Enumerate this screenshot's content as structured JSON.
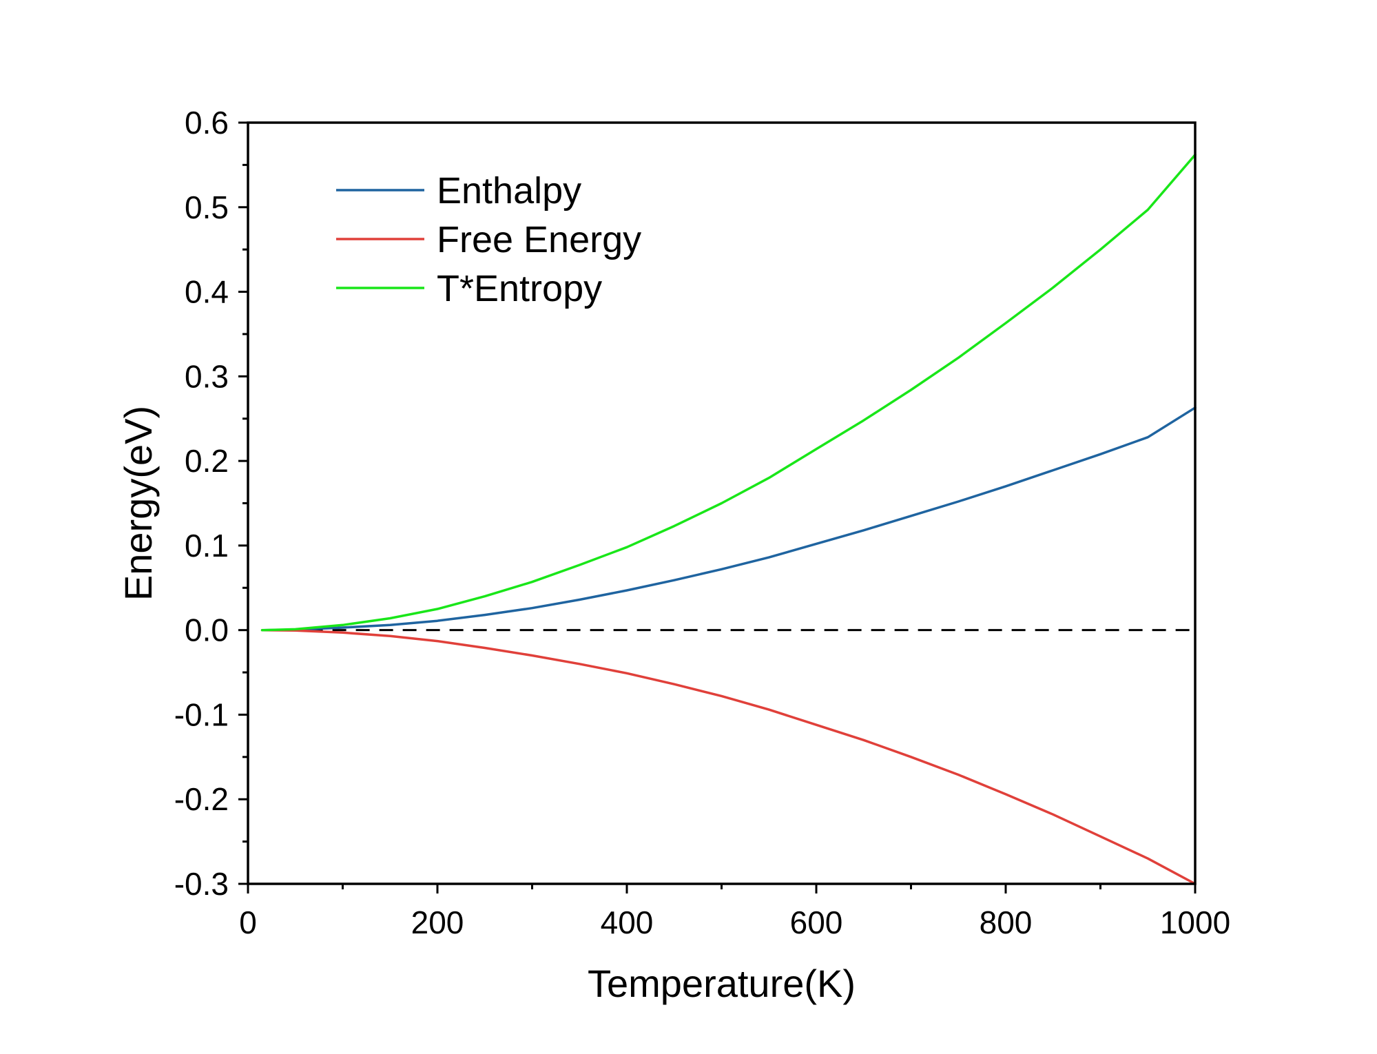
{
  "chart_data": {
    "type": "line",
    "title": "",
    "xlabel": "Temperature(K)",
    "ylabel": "Energy(eV)",
    "xlim": [
      0,
      1000
    ],
    "ylim": [
      -0.3,
      0.6
    ],
    "xticks": [
      0,
      200,
      400,
      600,
      800,
      1000
    ],
    "xtick_labels": [
      "0",
      "200",
      "400",
      "600",
      "800",
      "1000"
    ],
    "yticks": [
      -0.3,
      -0.2,
      -0.1,
      0.0,
      0.1,
      0.2,
      0.3,
      0.4,
      0.5,
      0.6
    ],
    "ytick_labels": [
      "-0.3",
      "-0.2",
      "-0.1",
      "0.0",
      "0.1",
      "0.2",
      "0.3",
      "0.4",
      "0.5",
      "0.6"
    ],
    "grid": false,
    "legend_position": "top-left",
    "x": [
      15,
      50,
      100,
      150,
      200,
      250,
      300,
      350,
      400,
      450,
      500,
      550,
      600,
      650,
      700,
      750,
      800,
      850,
      900,
      950,
      1000
    ],
    "series": [
      {
        "name": "Enthalpy",
        "color": "#1f64a0",
        "values": [
          0.0,
          0.0005,
          0.003,
          0.006,
          0.011,
          0.018,
          0.026,
          0.036,
          0.047,
          0.059,
          0.072,
          0.086,
          0.102,
          0.118,
          0.135,
          0.152,
          0.17,
          0.189,
          0.208,
          0.228,
          0.263
        ]
      },
      {
        "name": "Free Energy",
        "color": "#e0403a",
        "values": [
          0.0,
          -0.0005,
          -0.003,
          -0.007,
          -0.013,
          -0.021,
          -0.03,
          -0.04,
          -0.051,
          -0.064,
          -0.078,
          -0.094,
          -0.112,
          -0.13,
          -0.15,
          -0.171,
          -0.194,
          -0.218,
          -0.244,
          -0.27,
          -0.3
        ]
      },
      {
        "name": "T*Entropy",
        "color": "#19e619",
        "values": [
          0.0,
          0.001,
          0.006,
          0.014,
          0.025,
          0.04,
          0.057,
          0.077,
          0.098,
          0.123,
          0.15,
          0.18,
          0.214,
          0.248,
          0.284,
          0.322,
          0.363,
          0.405,
          0.45,
          0.497,
          0.562
        ]
      }
    ],
    "reference_line": {
      "y": 0.0,
      "style": "dashed",
      "color": "#000000"
    }
  }
}
